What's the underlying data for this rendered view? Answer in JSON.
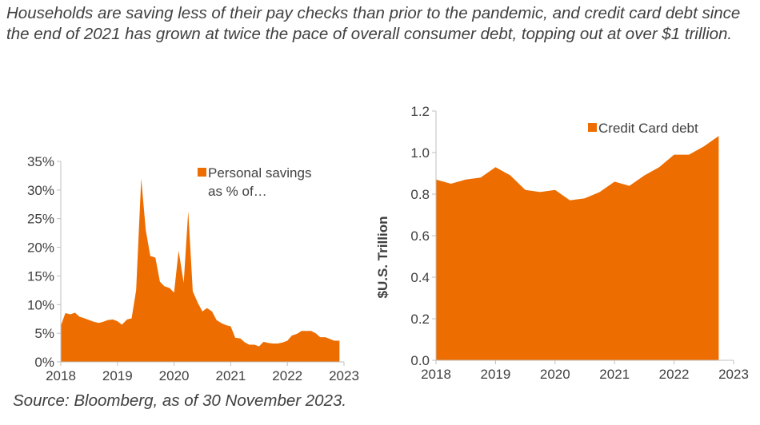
{
  "headline": "Households are saving less of their pay checks than prior to the pandemic, and credit card debt since the end of 2021 has grown at twice the pace of overall consumer debt, topping out at over $1 trillion.",
  "source": "Source: Bloomberg, as of 30 November 2023.",
  "colors": {
    "area": "#ED6D00",
    "axis": "#BFBFBF",
    "text": "#404040"
  },
  "chart_data": [
    {
      "type": "area",
      "legend": [
        "Personal savings",
        "as % of…"
      ],
      "legend_position": "top-right",
      "x_ticks": [
        "2018",
        "2019",
        "2020",
        "2021",
        "2022",
        "2023"
      ],
      "x_range": [
        2018,
        2023
      ],
      "y_ticks": [
        "0%",
        "5%",
        "10%",
        "15%",
        "20%",
        "25%",
        "30%",
        "35%"
      ],
      "ylim": [
        0,
        35
      ],
      "grid": false,
      "x": [
        2018.0,
        2018.08,
        2018.17,
        2018.25,
        2018.33,
        2018.42,
        2018.5,
        2018.58,
        2018.67,
        2018.75,
        2018.83,
        2018.92,
        2019.0,
        2019.08,
        2019.17,
        2019.25,
        2019.33,
        2019.42,
        2019.5,
        2019.58,
        2019.67,
        2019.75,
        2019.83,
        2019.92,
        2020.0,
        2020.08,
        2020.17,
        2020.25,
        2020.33,
        2020.42,
        2020.5,
        2020.58,
        2020.67,
        2020.75,
        2020.83,
        2020.92,
        2021.0,
        2021.08,
        2021.17,
        2021.25,
        2021.33,
        2021.42,
        2021.5,
        2021.58,
        2021.67,
        2021.75,
        2021.83,
        2021.92,
        2022.0,
        2022.08,
        2022.17,
        2022.25,
        2022.33,
        2022.42,
        2022.5,
        2022.58,
        2022.67,
        2022.75,
        2022.83,
        2022.92
      ],
      "values": [
        6.3,
        8.5,
        8.3,
        8.6,
        7.9,
        7.6,
        7.3,
        7.0,
        6.8,
        7.0,
        7.3,
        7.4,
        7.1,
        6.5,
        7.4,
        7.6,
        12.5,
        32.0,
        23.0,
        18.5,
        18.2,
        14.0,
        13.2,
        12.9,
        12.1,
        19.4,
        13.8,
        26.3,
        12.3,
        10.3,
        8.8,
        9.4,
        8.8,
        7.3,
        6.8,
        6.4,
        6.2,
        4.2,
        4.1,
        3.4,
        3.0,
        3.0,
        2.7,
        3.5,
        3.3,
        3.2,
        3.2,
        3.4,
        3.7,
        4.6,
        4.9,
        5.4,
        5.4,
        5.4,
        5.0,
        4.3,
        4.3,
        4.0,
        3.7,
        3.7
      ]
    },
    {
      "type": "area",
      "legend": [
        "Credit Card debt"
      ],
      "legend_position": "top-right",
      "ylabel": "$U.S. Trillion",
      "x_ticks": [
        "2018",
        "2019",
        "2020",
        "2021",
        "2022",
        "2023"
      ],
      "x_range": [
        2018,
        2023
      ],
      "y_ticks": [
        "0.0",
        "0.2",
        "0.4",
        "0.6",
        "0.8",
        "1.0",
        "1.2"
      ],
      "ylim": [
        0,
        1.2
      ],
      "grid": false,
      "x": [
        2018.0,
        2018.25,
        2018.5,
        2018.75,
        2019.0,
        2019.25,
        2019.5,
        2019.75,
        2020.0,
        2020.25,
        2020.5,
        2020.75,
        2021.0,
        2021.25,
        2021.5,
        2021.75,
        2022.0,
        2022.25,
        2022.5,
        2022.75
      ],
      "values": [
        0.87,
        0.85,
        0.87,
        0.88,
        0.93,
        0.89,
        0.82,
        0.81,
        0.82,
        0.77,
        0.78,
        0.81,
        0.86,
        0.84,
        0.89,
        0.93,
        0.99,
        0.99,
        1.03,
        1.08
      ]
    }
  ]
}
